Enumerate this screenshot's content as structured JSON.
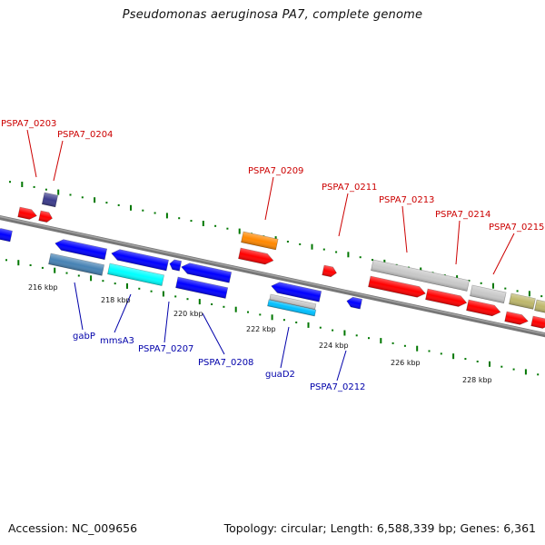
{
  "map": {
    "title": "Pseudomonas aeruginosa PA7, complete genome",
    "accession": "Accession: NC_009656",
    "summary": "Topology: circular; Length: 6,588,339 bp; Genes: 6,361"
  },
  "scale": {
    "ticks": [
      "216 kbp",
      "218 kbp",
      "220 kbp",
      "222 kbp",
      "224 kbp",
      "226 kbp",
      "228 kbp"
    ]
  },
  "labels": {
    "top": [
      "PSPA7_0203",
      "PSPA7_0204",
      "PSPA7_0209",
      "PSPA7_0211",
      "PSPA7_0213",
      "PSPA7_0214",
      "PSPA7_0215"
    ],
    "bottom": [
      "gabP",
      "mmsA3",
      "PSPA7_0207",
      "PSPA7_0208",
      "guaD2",
      "PSPA7_0212"
    ]
  },
  "colors": {
    "cds_red": "#ff0000",
    "cds_blue": "#0000ff",
    "cds_orange": "#ff8800",
    "cds_gray": "#c8c8c8",
    "cds_olive": "#bdb76b",
    "cds_navy": "#3c3c8c",
    "cds_steel": "#4682b4",
    "cds_cyan": "#00ffff",
    "cds_lightblue": "#00bfff",
    "backbone": "#888888",
    "tick_green": "#007700",
    "label_red": "#cc0000",
    "label_blue": "#0000aa"
  }
}
